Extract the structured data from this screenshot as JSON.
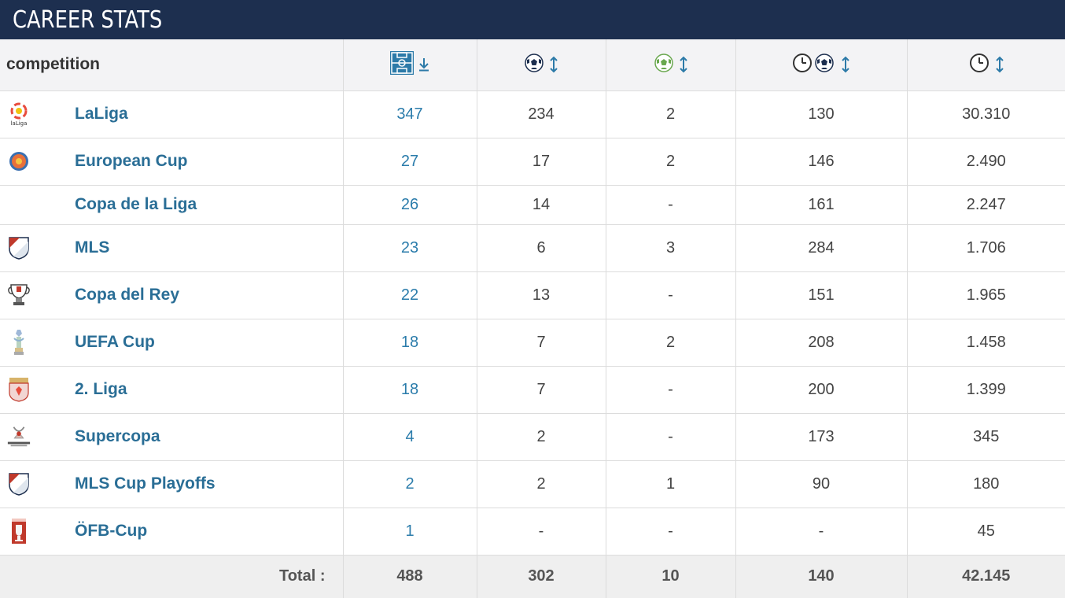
{
  "header": {
    "title": "CAREER STATS"
  },
  "table": {
    "columns": {
      "competition": "competition",
      "appearances_icon": "pitch-icon",
      "goals_icon": "ball-icon",
      "assists_icon": "assist-ball-icon",
      "minutes_per_goal_icon": "clock-ball-icon",
      "minutes_icon": "clock-icon"
    },
    "rows": [
      {
        "name": "LaLiga",
        "apps": "347",
        "goals": "234",
        "assists": "2",
        "mpg": "130",
        "minutes": "30.310"
      },
      {
        "name": "European Cup",
        "apps": "27",
        "goals": "17",
        "assists": "2",
        "mpg": "146",
        "minutes": "2.490"
      },
      {
        "name": "Copa de la Liga",
        "apps": "26",
        "goals": "14",
        "assists": "-",
        "mpg": "161",
        "minutes": "2.247"
      },
      {
        "name": "MLS",
        "apps": "23",
        "goals": "6",
        "assists": "3",
        "mpg": "284",
        "minutes": "1.706"
      },
      {
        "name": "Copa del Rey",
        "apps": "22",
        "goals": "13",
        "assists": "-",
        "mpg": "151",
        "minutes": "1.965"
      },
      {
        "name": "UEFA Cup",
        "apps": "18",
        "goals": "7",
        "assists": "2",
        "mpg": "208",
        "minutes": "1.458"
      },
      {
        "name": "2. Liga",
        "apps": "18",
        "goals": "7",
        "assists": "-",
        "mpg": "200",
        "minutes": "1.399"
      },
      {
        "name": "Supercopa",
        "apps": "4",
        "goals": "2",
        "assists": "-",
        "mpg": "173",
        "minutes": "345"
      },
      {
        "name": "MLS Cup Playoffs",
        "apps": "2",
        "goals": "2",
        "assists": "1",
        "mpg": "90",
        "minutes": "180"
      },
      {
        "name": "ÖFB-Cup",
        "apps": "1",
        "goals": "-",
        "assists": "-",
        "mpg": "-",
        "minutes": "45"
      }
    ],
    "total": {
      "label": "Total :",
      "apps": "488",
      "goals": "302",
      "assists": "10",
      "mpg": "140",
      "minutes": "42.145"
    }
  },
  "colors": {
    "header_bg": "#1d2f4f",
    "link": "#2a6e96",
    "sort_arrow": "#2c7aa8"
  }
}
